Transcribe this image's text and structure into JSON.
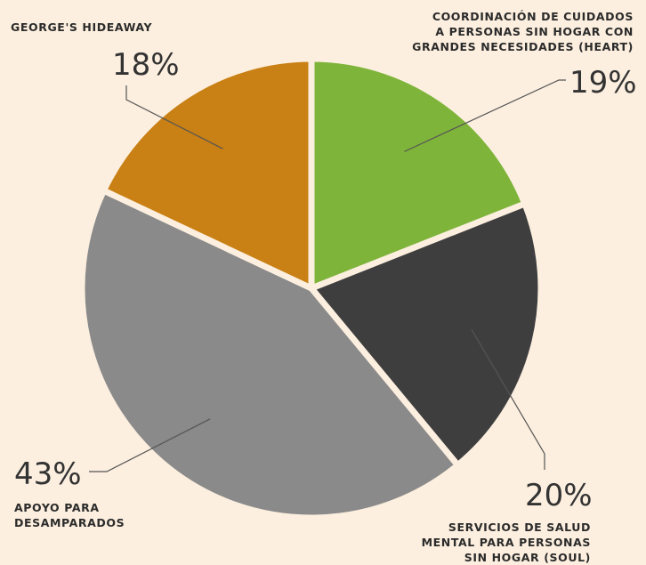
{
  "chart_data": {
    "type": "pie",
    "title": "",
    "slices": [
      {
        "label_lines": [
          "COORDINACIÓN DE CUIDADOS",
          "A PERSONAS SIN HOGAR CON",
          "GRANDES NECESIDADES (HEART)"
        ],
        "value": 19,
        "value_label": "19%",
        "color": "#7fb43b"
      },
      {
        "label_lines": [
          "SERVICIOS DE SALUD",
          "MENTAL PARA PERSONAS",
          "SIN HOGAR (SOUL)"
        ],
        "value": 20,
        "value_label": "20%",
        "color": "#3e3e3e"
      },
      {
        "label_lines": [
          "APOYO PARA",
          "DESAMPARADOS"
        ],
        "value": 43,
        "value_label": "43%",
        "color": "#8a8a8a"
      },
      {
        "label_lines": [
          "GEORGE'S HIDEAWAY"
        ],
        "value": 18,
        "value_label": "18%",
        "color": "#c98014"
      }
    ],
    "start_angle_deg": 0,
    "direction": "clockwise",
    "slice_border_color": "#fcefdf",
    "leader_line_color": "#555555"
  }
}
